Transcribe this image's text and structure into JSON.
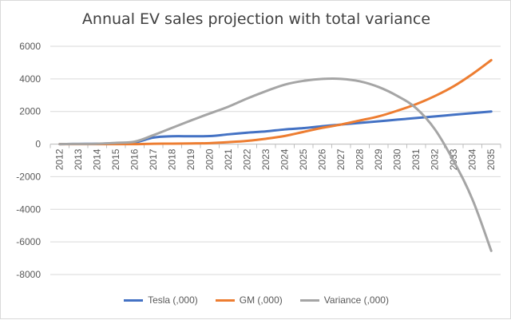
{
  "chart_data": {
    "type": "line",
    "title": "Annual EV sales projection with total variance",
    "xlabel": "",
    "ylabel": "",
    "categories": [
      "2012",
      "2013",
      "2014",
      "2015",
      "2016",
      "2017",
      "2018",
      "2019",
      "2020",
      "2021",
      "2022",
      "2023",
      "2024",
      "2025",
      "2026",
      "2027",
      "2028",
      "2029",
      "2030",
      "2031",
      "2032",
      "2033",
      "2034",
      "2035"
    ],
    "ylim": [
      -8000,
      6000
    ],
    "yticks": [
      "6000",
      "4000",
      "2000",
      "0",
      "-2000",
      "-4000",
      "-6000",
      "-8000"
    ],
    "grid": true,
    "legend_position": "bottom",
    "series": [
      {
        "name": "Tesla (,000)",
        "color": "#4472c4",
        "values": [
          0,
          10,
          20,
          50,
          100,
          400,
          480,
          480,
          490,
          600,
          700,
          780,
          900,
          980,
          1100,
          1200,
          1300,
          1400,
          1500,
          1600,
          1700,
          1800,
          1900,
          2000
        ]
      },
      {
        "name": "GM (,000)",
        "color": "#ed7d31",
        "values": [
          0,
          0,
          0,
          0,
          0,
          20,
          30,
          40,
          60,
          120,
          200,
          330,
          500,
          750,
          1000,
          1200,
          1450,
          1700,
          2050,
          2450,
          2950,
          3550,
          4300,
          5150
        ]
      },
      {
        "name": "Variance (,000)",
        "color": "#a5a5a5",
        "values": [
          0,
          10,
          20,
          80,
          150,
          550,
          1000,
          1450,
          1880,
          2300,
          2800,
          3250,
          3650,
          3880,
          4000,
          4000,
          3850,
          3500,
          2950,
          2200,
          900,
          -1050,
          -3400,
          -6550
        ]
      }
    ]
  }
}
